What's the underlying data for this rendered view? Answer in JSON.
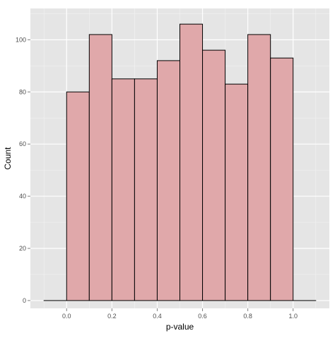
{
  "chart_data": {
    "type": "bar",
    "subtype": "histogram",
    "title": "",
    "xlabel": "p-value",
    "ylabel": "Count",
    "bin_edges": [
      -0.1,
      0.0,
      0.1,
      0.2,
      0.3,
      0.4,
      0.5,
      0.6,
      0.7,
      0.8,
      0.9,
      1.0,
      1.1
    ],
    "values": [
      0,
      80,
      102,
      85,
      85,
      92,
      106,
      96,
      83,
      102,
      93,
      0
    ],
    "xlim": [
      -0.16,
      1.16
    ],
    "ylim": [
      -3,
      112
    ],
    "x_ticks": [
      0.0,
      0.2,
      0.4,
      0.6,
      0.8,
      1.0
    ],
    "x_tick_labels": [
      "0.0",
      "0.2",
      "0.4",
      "0.6",
      "0.8",
      "1.0"
    ],
    "y_ticks": [
      0,
      20,
      40,
      60,
      80,
      100
    ],
    "y_tick_labels": [
      "0",
      "20",
      "40",
      "60",
      "80",
      "100"
    ],
    "grid": true,
    "legend": "none",
    "colors": {
      "panel_background": "#e5e5e5",
      "grid_major": "#ffffff",
      "grid_minor": "#f2f2f2",
      "bar_fill": "#e0a8aa",
      "bar_outline": "#000000"
    }
  }
}
